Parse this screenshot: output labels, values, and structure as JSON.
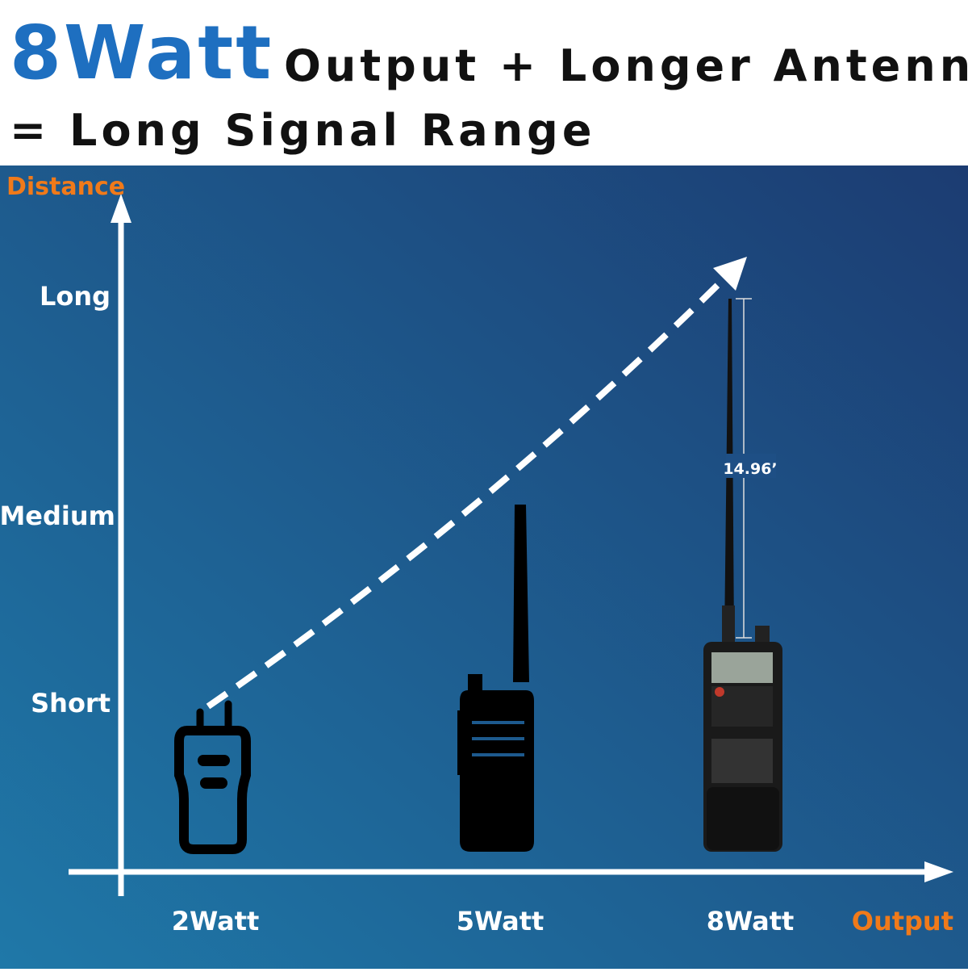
{
  "header": {
    "highlight": "8Watt",
    "title_rest": "Output + Longer Antenna",
    "subtitle": "= Long Signal Range"
  },
  "y_axis": {
    "label": "Distance",
    "levels": [
      "Long",
      "Medium",
      "Short"
    ]
  },
  "x_axis": {
    "label": "Output",
    "levels": [
      "2Watt",
      "5Watt",
      "8Watt"
    ]
  },
  "antenna_label": "14.96’"
}
